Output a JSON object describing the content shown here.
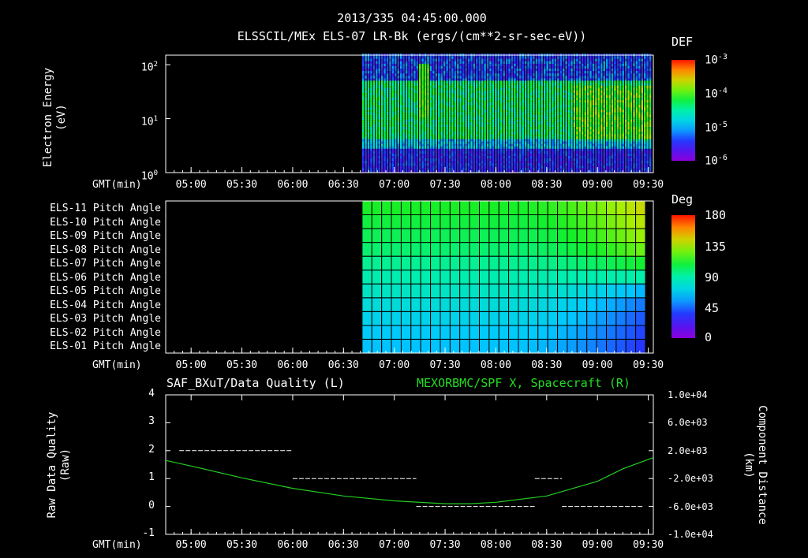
{
  "header": {
    "timestamp": "2013/335 04:45:00.000",
    "title": "ELSSCIL/MEx ELS-07 LR-Bk  (ergs/(cm**2-sr-sec-eV))"
  },
  "time_axis": {
    "label": "GMT(min)",
    "ticks": [
      "05:00",
      "05:30",
      "06:00",
      "06:30",
      "07:00",
      "07:30",
      "08:00",
      "08:30",
      "09:00",
      "09:30"
    ]
  },
  "panel1": {
    "ylabel_line1": "Electron Energy",
    "ylabel_line2": "(eV)",
    "yticks": [
      "10",
      "10",
      "10"
    ],
    "yexps": [
      "0",
      "1",
      "2"
    ],
    "colorbar": {
      "title": "DEF",
      "ticks": [
        "10",
        "10",
        "10",
        "10"
      ],
      "exps": [
        "-3",
        "-4",
        "-5",
        "-6"
      ]
    }
  },
  "panel2": {
    "row_labels": [
      "ELS-11 Pitch Angle",
      "ELS-10 Pitch Angle",
      "ELS-09 Pitch Angle",
      "ELS-08 Pitch Angle",
      "ELS-07 Pitch Angle",
      "ELS-06 Pitch Angle",
      "ELS-05 Pitch Angle",
      "ELS-04 Pitch Angle",
      "ELS-03 Pitch Angle",
      "ELS-02 Pitch Angle",
      "ELS-01 Pitch Angle"
    ],
    "colorbar": {
      "title": "Deg",
      "ticks": [
        "180",
        "135",
        "90",
        "45",
        "0"
      ]
    }
  },
  "panel3": {
    "title_left": "SAF_BXuT/Data Quality (L)",
    "title_right": "MEXORBMC/SPF X, Spacecraft (R)",
    "ylabel_left_line1": "Raw Data Quality",
    "ylabel_left_line2": "(Raw)",
    "ylabel_right_line1": "Component Distance",
    "ylabel_right_line2": "(km)",
    "yticks_left": [
      "4",
      "3",
      "2",
      "1",
      "0",
      "-1"
    ],
    "yticks_right": [
      "1.0e+04",
      "6.0e+03",
      "2.0e+03",
      "-2.0e+03",
      "-6.0e+03",
      "-1.0e+04"
    ]
  },
  "chart_data": [
    {
      "type": "heatmap",
      "title": "ELSSCIL/MEx ELS-07 LR-Bk  (ergs/(cm**2-sr-sec-eV))",
      "xlabel": "GMT(min)",
      "ylabel": "Electron Energy (eV)",
      "yscale": "log",
      "ylim": [
        1,
        150
      ],
      "xlim": [
        "04:45",
        "09:33"
      ],
      "data_start": "06:41",
      "colorbar_label": "DEF",
      "colorbar_range": [
        1e-06,
        0.001
      ],
      "colorbar_scale": "log",
      "note_values": "green ~1e-4 between ~4 and ~50 eV, burst near 07:17 up to ~100 eV"
    },
    {
      "type": "heatmap",
      "xlabel": "GMT(min)",
      "categories": [
        "ELS-01",
        "ELS-02",
        "ELS-03",
        "ELS-04",
        "ELS-05",
        "ELS-06",
        "ELS-07",
        "ELS-08",
        "ELS-09",
        "ELS-10",
        "ELS-11"
      ],
      "colorbar_label": "Deg",
      "colorbar_range": [
        0,
        180
      ],
      "data_start": "06:41",
      "pitch_angle_start": [
        62,
        65,
        70,
        75,
        82,
        88,
        94,
        100,
        104,
        108,
        112
      ],
      "pitch_angle_end": [
        35,
        38,
        42,
        48,
        60,
        90,
        110,
        125,
        132,
        138,
        142
      ]
    },
    {
      "type": "line",
      "xlabel": "GMT(min)",
      "xlim": [
        "04:45",
        "09:33"
      ],
      "series": [
        {
          "name": "SAF_BXuT/Data Quality (L)",
          "axis": "left",
          "style": "dashed-segments",
          "segments": [
            {
              "x": [
                "04:53",
                "06:00"
              ],
              "y": 2
            },
            {
              "x": [
                "06:00",
                "07:13"
              ],
              "y": 1
            },
            {
              "x": [
                "07:13",
                "08:23"
              ],
              "y": 0
            },
            {
              "x": [
                "08:23",
                "08:39"
              ],
              "y": 1
            },
            {
              "x": [
                "08:39",
                "09:27"
              ],
              "y": 0
            }
          ],
          "ylim": [
            -1,
            4
          ]
        },
        {
          "name": "MEXORBMC/SPF X, Spacecraft (R)",
          "axis": "right",
          "color": "#22cc22",
          "x": [
            "04:45",
            "05:00",
            "05:30",
            "06:00",
            "06:30",
            "07:00",
            "07:30",
            "07:45",
            "08:00",
            "08:30",
            "09:00",
            "09:15",
            "09:33"
          ],
          "y": [
            600,
            -200,
            -1900,
            -3400,
            -4500,
            -5200,
            -5600,
            -5600,
            -5400,
            -4500,
            -2400,
            -600,
            1000
          ],
          "ylim": [
            -10000,
            10000
          ]
        }
      ]
    }
  ]
}
